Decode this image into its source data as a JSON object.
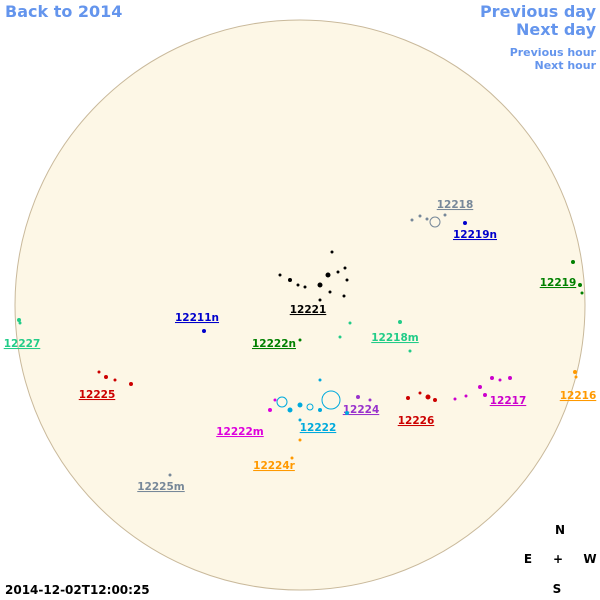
{
  "nav": {
    "back": "Back to 2014",
    "previous_day": "Previous day",
    "next_day": "Next day",
    "previous_hour": "Previous hour",
    "next_hour": "Next hour"
  },
  "regions": [
    {
      "label": "12218",
      "color": "#778899"
    },
    {
      "label": "12219n",
      "color": "#0000cc"
    },
    {
      "label": "12219",
      "color": "#008000"
    },
    {
      "label": "12221",
      "color": "#000000"
    },
    {
      "label": "12211n",
      "color": "#0000cc"
    },
    {
      "label": "12218m",
      "color": "#22cc88"
    },
    {
      "label": "12222n",
      "color": "#008000"
    },
    {
      "label": "12227",
      "color": "#22cc88"
    },
    {
      "label": "12225",
      "color": "#cc0000"
    },
    {
      "label": "12216",
      "color": "#ff9900"
    },
    {
      "label": "12217",
      "color": "#cc00cc"
    },
    {
      "label": "12224",
      "color": "#9933cc"
    },
    {
      "label": "12226",
      "color": "#cc0000"
    },
    {
      "label": "12222",
      "color": "#00aadd"
    },
    {
      "label": "12222m",
      "color": "#dd00dd"
    },
    {
      "label": "12224r",
      "color": "#ff9900"
    },
    {
      "label": "12225m",
      "color": "#778899"
    }
  ],
  "compass": {
    "north": "N",
    "east": "E",
    "center": "+",
    "west": "W",
    "south": "S"
  },
  "timestamp": "2014-12-02T12:00:25"
}
